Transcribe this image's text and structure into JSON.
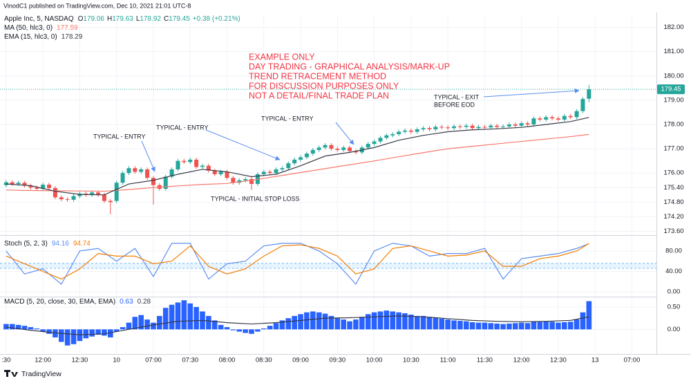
{
  "header": {
    "publisher": "VinodC1 published on TradingView.com, Dec 10, 2021 21:01 UTC-8"
  },
  "annotations": {
    "note": [
      "EXAMPLE ONLY",
      "DAY TRADING - GRAPHICAL ANALYSIS/MARK-UP",
      "TREND RETRACEMENT METHOD",
      "FOR DISCUSSION PURPOSES ONLY",
      "NOT A DETAIL/FINAL TRADE PLAN"
    ],
    "labels": [
      "TYPICAL - ENTRY",
      "TYPICAL - ENTRY",
      "TYPICAL - ENTRY",
      "TYPICAL - EXIT",
      "BEFORE EOD",
      "TYPICAL - INITIAL STOP LOSS"
    ]
  },
  "footer": {
    "brand": "TradingView"
  },
  "chart_data": [
    {
      "type": "candlestick",
      "title": "Apple Inc, 5, NASDAQ",
      "ohlc_labels": [
        "O",
        "H",
        "L",
        "C"
      ],
      "change": "+0.38 (+0.21%)",
      "xlim": [
        -1,
        106
      ],
      "ylim": [
        173.5,
        182.5
      ],
      "grid": true,
      "yticks": [
        {
          "value": 182,
          "label": "182.00"
        },
        {
          "value": 181,
          "label": "181.00"
        },
        {
          "value": 180,
          "label": "180.00"
        },
        {
          "value": 179,
          "label": "179.00"
        },
        {
          "value": 178,
          "label": "178.00"
        },
        {
          "value": 177,
          "label": "177.00"
        },
        {
          "value": 176,
          "label": "176.00"
        },
        {
          "value": 175.4,
          "label": "175.40"
        },
        {
          "value": 174.8,
          "label": "174.80"
        },
        {
          "value": 174.2,
          "label": "174.20"
        },
        {
          "value": 173.6,
          "label": "173.60"
        }
      ],
      "up_color": "#26a69a",
      "down_color": "#ef5350",
      "open": [
        175.5,
        175.62,
        175.55,
        175.6,
        175.48,
        175.4,
        175.35,
        175.52,
        175.38,
        175.0,
        174.92,
        174.9,
        175.05,
        175.15,
        175.1,
        175.2,
        175.1,
        174.85,
        174.85,
        175.6,
        176.0,
        176.2,
        176.05,
        176.15,
        175.8,
        175.5,
        175.35,
        175.85,
        176.15,
        176.5,
        176.45,
        176.55,
        176.25,
        176.3,
        176.1,
        175.95,
        176.05,
        175.8,
        175.6,
        175.7,
        175.75,
        175.55,
        175.95,
        176.05,
        176.0,
        176.15,
        176.2,
        176.4,
        176.55,
        176.65,
        176.8,
        176.95,
        177.05,
        177.15,
        177.0,
        176.95,
        177.05,
        176.9,
        176.85,
        177.05,
        177.2,
        177.3,
        177.45,
        177.55,
        177.6,
        177.7,
        177.75,
        177.7,
        177.8,
        177.85,
        177.8,
        177.9,
        177.88,
        177.85,
        177.92,
        177.9,
        177.95,
        177.85,
        177.9,
        177.88,
        177.95,
        177.9,
        177.92,
        178.0,
        177.95,
        178.05,
        178.0,
        178.25,
        178.2,
        178.3,
        178.25,
        178.2,
        178.35,
        178.3,
        178.55,
        179.06
      ],
      "high": [
        175.7,
        175.7,
        175.68,
        175.68,
        175.56,
        175.48,
        175.6,
        175.6,
        175.46,
        175.08,
        175.0,
        175.13,
        175.23,
        175.23,
        175.28,
        175.28,
        175.18,
        174.93,
        175.68,
        176.08,
        176.28,
        176.28,
        176.23,
        176.23,
        175.88,
        175.58,
        175.93,
        176.23,
        176.58,
        176.58,
        176.63,
        176.63,
        176.38,
        176.38,
        176.18,
        176.13,
        176.13,
        175.88,
        175.78,
        175.83,
        175.83,
        176.03,
        176.13,
        176.13,
        176.23,
        176.28,
        176.48,
        176.63,
        176.73,
        176.88,
        177.03,
        177.13,
        177.23,
        177.23,
        177.08,
        177.13,
        177.13,
        176.98,
        177.13,
        177.28,
        177.38,
        177.53,
        177.63,
        177.68,
        177.78,
        177.83,
        177.83,
        177.88,
        177.93,
        177.93,
        177.98,
        177.98,
        177.96,
        178.0,
        178.0,
        178.03,
        178.03,
        177.98,
        177.98,
        178.03,
        178.03,
        178.0,
        178.08,
        178.08,
        178.13,
        178.13,
        178.33,
        178.33,
        178.38,
        178.38,
        178.33,
        178.43,
        178.43,
        178.63,
        179.13,
        179.63
      ],
      "low": [
        175.42,
        175.47,
        175.47,
        175.4,
        175.32,
        175.27,
        175.27,
        175.3,
        174.92,
        174.84,
        174.82,
        174.82,
        174.97,
        175.02,
        175.02,
        175.02,
        174.77,
        174.3,
        174.77,
        175.52,
        175.92,
        175.97,
        175.97,
        175.72,
        174.7,
        175.27,
        175.27,
        175.77,
        176.07,
        176.37,
        176.37,
        176.17,
        176.17,
        176.02,
        175.87,
        175.87,
        175.72,
        175.52,
        175.52,
        175.62,
        175.3,
        175.47,
        175.87,
        175.92,
        175.92,
        176.07,
        176.12,
        176.32,
        176.47,
        176.57,
        176.72,
        176.87,
        176.97,
        176.92,
        176.87,
        176.87,
        176.82,
        176.77,
        176.77,
        176.97,
        177.12,
        177.22,
        177.37,
        177.47,
        177.52,
        177.62,
        177.62,
        177.62,
        177.72,
        177.72,
        177.72,
        177.8,
        177.77,
        177.77,
        177.82,
        177.82,
        177.77,
        177.77,
        177.8,
        177.8,
        177.82,
        177.82,
        177.84,
        177.87,
        177.87,
        177.92,
        177.92,
        178.12,
        178.12,
        178.17,
        178.12,
        178.12,
        178.22,
        178.22,
        178.47,
        178.92
      ],
      "close": [
        175.62,
        175.55,
        175.6,
        175.48,
        175.4,
        175.35,
        175.52,
        175.38,
        175.0,
        174.92,
        174.9,
        175.05,
        175.15,
        175.1,
        175.2,
        175.1,
        174.85,
        174.8,
        175.6,
        176.0,
        176.2,
        176.05,
        176.15,
        175.8,
        175.5,
        175.35,
        175.85,
        176.15,
        176.5,
        176.45,
        176.55,
        176.25,
        176.3,
        176.1,
        175.95,
        176.05,
        175.8,
        175.6,
        175.7,
        175.75,
        175.55,
        175.95,
        176.05,
        176.0,
        176.15,
        176.2,
        176.4,
        176.55,
        176.65,
        176.8,
        176.95,
        177.05,
        177.15,
        177.0,
        176.95,
        177.05,
        176.9,
        176.85,
        177.05,
        177.2,
        177.3,
        177.45,
        177.55,
        177.6,
        177.7,
        177.75,
        177.7,
        177.8,
        177.85,
        177.8,
        177.9,
        177.88,
        177.85,
        177.92,
        177.9,
        177.95,
        177.85,
        177.9,
        177.88,
        177.95,
        177.9,
        177.92,
        178.0,
        177.95,
        178.05,
        178.0,
        178.25,
        178.2,
        178.3,
        178.25,
        178.2,
        178.35,
        178.3,
        178.55,
        179.05,
        179.45
      ],
      "series": [
        {
          "name": "MA (50, hlc3, 0)",
          "color": "#f7776b",
          "x": [
            0,
            4,
            8,
            12,
            16,
            20,
            24,
            28,
            32,
            36,
            40,
            44,
            48,
            52,
            56,
            60,
            64,
            68,
            72,
            76,
            80,
            84,
            88,
            92,
            95
          ],
          "values": [
            175.3,
            175.28,
            175.27,
            175.26,
            175.25,
            175.32,
            175.4,
            175.47,
            175.53,
            175.57,
            175.7,
            175.86,
            176.02,
            176.18,
            176.34,
            176.5,
            176.67,
            176.84,
            177.0,
            177.1,
            177.2,
            177.3,
            177.4,
            177.5,
            177.59
          ]
        },
        {
          "name": "EMA (15, hlc3, 0)",
          "color": "#363a45",
          "x": [
            0,
            4,
            8,
            12,
            16,
            20,
            24,
            28,
            32,
            36,
            40,
            44,
            48,
            52,
            56,
            60,
            64,
            68,
            72,
            76,
            80,
            84,
            88,
            92,
            95
          ],
          "values": [
            175.55,
            175.48,
            175.25,
            175.12,
            175.1,
            175.55,
            175.7,
            175.95,
            176.15,
            176.05,
            175.85,
            175.95,
            176.3,
            176.7,
            176.85,
            177.05,
            177.35,
            177.55,
            177.7,
            177.78,
            177.82,
            177.88,
            178.0,
            178.12,
            178.29
          ]
        }
      ]
    },
    {
      "type": "line",
      "title": "Stoch (5, 2, 3)",
      "xlim": [
        -1,
        106
      ],
      "ylim": [
        -8,
        107
      ],
      "grid": true,
      "yticks": [
        {
          "value": 80,
          "label": "80.00"
        },
        {
          "value": 40,
          "label": "40.00"
        },
        {
          "value": 0,
          "label": "0.00"
        }
      ],
      "band": [
        46,
        56
      ],
      "band_color": "#2196f3",
      "series": [
        {
          "color": "#5b8def",
          "x": [
            0,
            3,
            6,
            9,
            12,
            15,
            18,
            21,
            24,
            27,
            30,
            33,
            36,
            39,
            42,
            45,
            48,
            51,
            54,
            57,
            60,
            63,
            66,
            69,
            72,
            75,
            78,
            81,
            84,
            87,
            90,
            93,
            95
          ],
          "values": [
            80,
            35,
            45,
            15,
            80,
            85,
            60,
            85,
            30,
            95,
            95,
            25,
            55,
            60,
            90,
            95,
            95,
            80,
            55,
            15,
            80,
            95,
            90,
            70,
            75,
            75,
            85,
            25,
            65,
            70,
            75,
            85,
            94.16
          ]
        },
        {
          "color": "#f57c00",
          "x": [
            0,
            3,
            6,
            9,
            12,
            15,
            18,
            21,
            24,
            27,
            30,
            33,
            36,
            39,
            42,
            45,
            48,
            51,
            54,
            57,
            60,
            63,
            66,
            69,
            72,
            75,
            78,
            81,
            84,
            87,
            90,
            93,
            95
          ],
          "values": [
            70,
            55,
            40,
            25,
            45,
            75,
            70,
            70,
            55,
            60,
            90,
            50,
            35,
            45,
            70,
            90,
            92,
            85,
            70,
            35,
            45,
            85,
            90,
            80,
            70,
            72,
            80,
            50,
            50,
            65,
            70,
            80,
            94.74
          ]
        }
      ]
    },
    {
      "type": "macd",
      "title": "MACD (5, 20, close, 30, EMA, EMA)",
      "xlim": [
        -1,
        106
      ],
      "ylim": [
        -0.52,
        0.7
      ],
      "grid": true,
      "yticks": [
        {
          "value": 0.5,
          "label": "0.50"
        },
        {
          "value": 0,
          "label": "0.00"
        }
      ],
      "xticks": [
        {
          "value": 0,
          "label": ":30"
        },
        {
          "value": 6,
          "label": "12:00"
        },
        {
          "value": 12,
          "label": "12:30"
        },
        {
          "value": 18,
          "label": "10"
        },
        {
          "value": 24,
          "label": "07:00"
        },
        {
          "value": 30,
          "label": "07:30"
        },
        {
          "value": 36,
          "label": "08:00"
        },
        {
          "value": 42,
          "label": "08:30"
        },
        {
          "value": 48,
          "label": "09:00"
        },
        {
          "value": 54,
          "label": "09:30"
        },
        {
          "value": 60,
          "label": "10:00"
        },
        {
          "value": 66,
          "label": "10:30"
        },
        {
          "value": 72,
          "label": "11:00"
        },
        {
          "value": 78,
          "label": "11:30"
        },
        {
          "value": 84,
          "label": "12:00"
        },
        {
          "value": 90,
          "label": "12:30"
        },
        {
          "value": 96,
          "label": "13"
        },
        {
          "value": 102,
          "label": "07:00"
        }
      ],
      "histogram": {
        "color": "#2962ff",
        "values": [
          0.12,
          0.12,
          0.1,
          0.08,
          0.05,
          0.02,
          -0.05,
          -0.1,
          -0.18,
          -0.28,
          -0.36,
          -0.33,
          -0.26,
          -0.2,
          -0.16,
          -0.12,
          -0.14,
          -0.18,
          -0.05,
          0.05,
          0.15,
          0.28,
          0.32,
          0.22,
          0.15,
          0.3,
          0.48,
          0.55,
          0.6,
          0.65,
          0.58,
          0.5,
          0.4,
          0.3,
          0.2,
          0.1,
          0.05,
          -0.02,
          -0.05,
          -0.08,
          -0.1,
          -0.05,
          0.02,
          0.08,
          0.14,
          0.2,
          0.25,
          0.3,
          0.34,
          0.38,
          0.4,
          0.38,
          0.35,
          0.3,
          0.25,
          0.22,
          0.18,
          0.22,
          0.28,
          0.34,
          0.38,
          0.4,
          0.42,
          0.4,
          0.38,
          0.36,
          0.33,
          0.3,
          0.3,
          0.28,
          0.26,
          0.24,
          0.22,
          0.2,
          0.19,
          0.18,
          0.16,
          0.15,
          0.15,
          0.14,
          0.13,
          0.12,
          0.13,
          0.14,
          0.15,
          0.14,
          0.18,
          0.17,
          0.18,
          0.17,
          0.15,
          0.16,
          0.17,
          0.22,
          0.38,
          0.63
        ]
      },
      "series": [
        {
          "color": "#363a45",
          "x": [
            0,
            4,
            8,
            12,
            16,
            20,
            24,
            28,
            32,
            36,
            40,
            44,
            48,
            52,
            56,
            60,
            64,
            68,
            72,
            76,
            80,
            84,
            88,
            92,
            95
          ],
          "values": [
            0.05,
            -0.02,
            -0.08,
            -0.12,
            -0.1,
            0.0,
            0.1,
            0.18,
            0.2,
            0.15,
            0.12,
            0.15,
            0.2,
            0.25,
            0.26,
            0.28,
            0.3,
            0.28,
            0.24,
            0.2,
            0.18,
            0.17,
            0.18,
            0.2,
            0.28
          ]
        }
      ]
    }
  ]
}
